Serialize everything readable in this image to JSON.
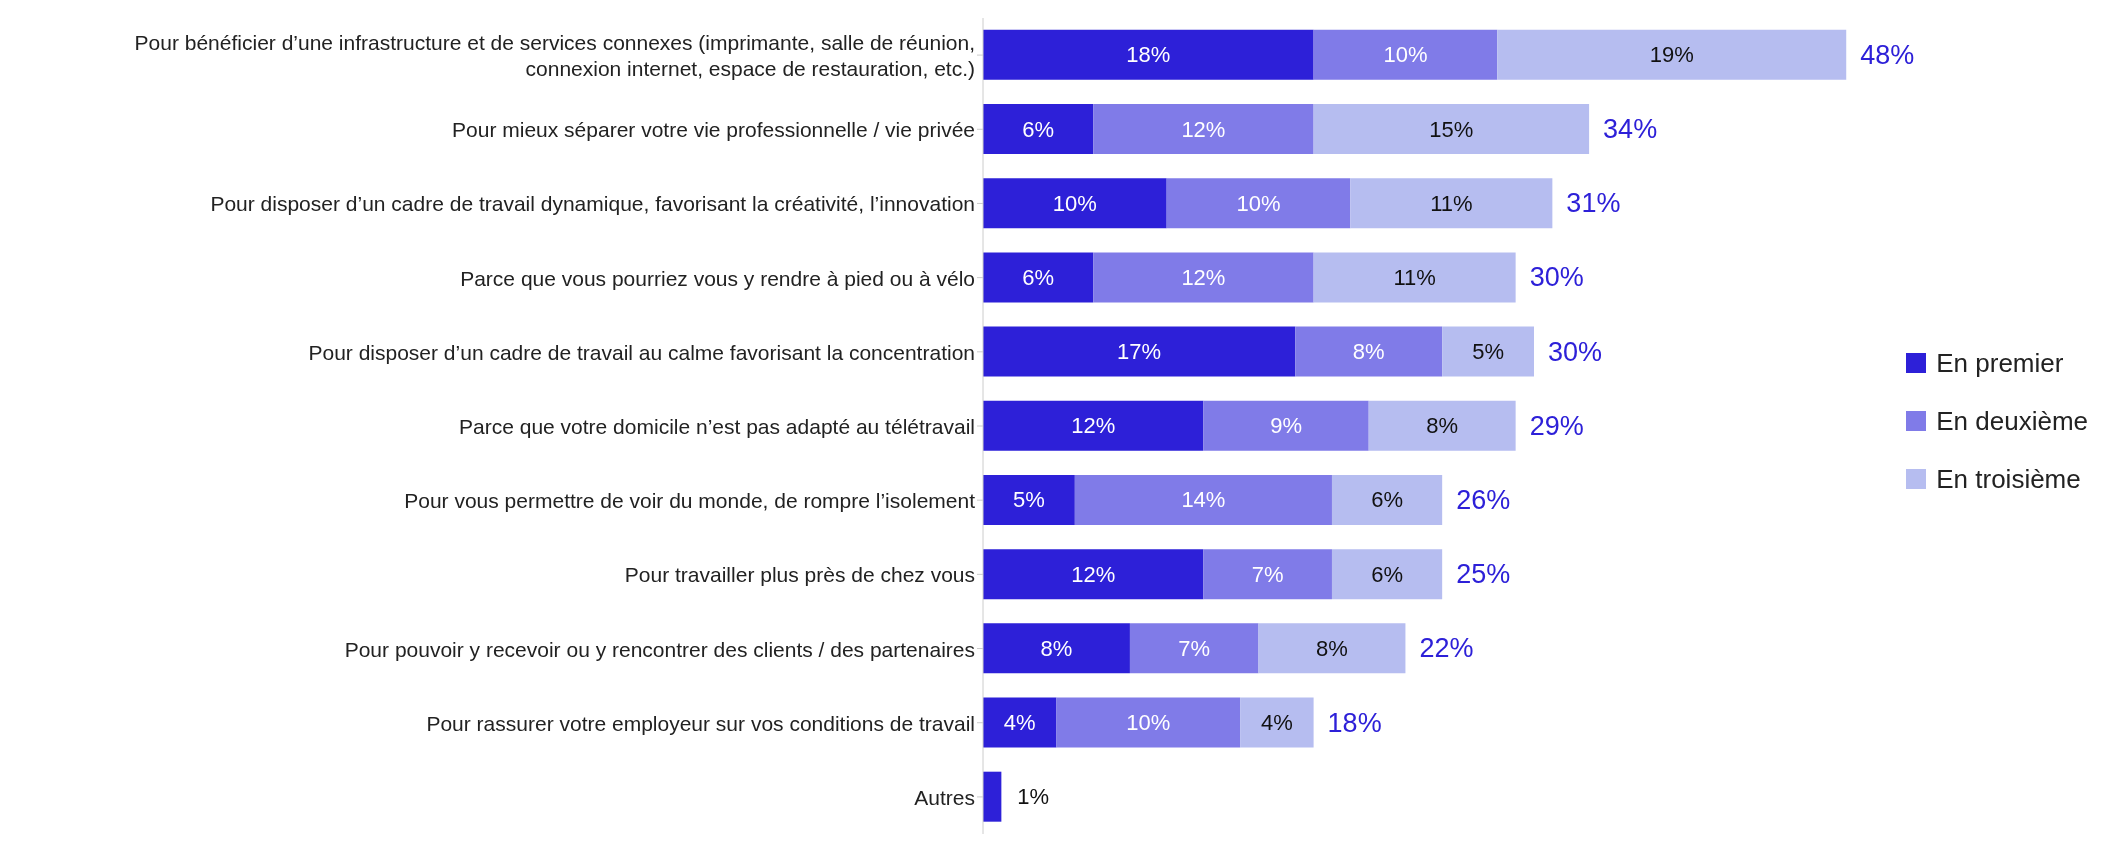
{
  "chart_data": {
    "type": "bar",
    "orientation": "horizontal",
    "stacked": true,
    "legend": "right",
    "categories": [
      "Pour bénéficier d’une infrastructure et de services connexes (imprimante, salle de réunion, connexion internet, espace de restauration, etc.)",
      "Pour mieux séparer votre vie professionnelle / vie privée",
      "Pour disposer d’un cadre de travail dynamique, favorisant la créativité, l’innovation",
      "Parce que vous pourriez vous y rendre à pied ou à vélo",
      "Pour disposer d’un cadre de travail au calme favorisant la concentration",
      "Parce que votre domicile n’est pas adapté au télétravail",
      "Pour vous permettre de voir du monde, de rompre l’isolement",
      "Pour travailler plus près de chez vous",
      "Pour pouvoir y recevoir ou y rencontrer des clients / des partenaires",
      "Pour rassurer votre employeur sur vos conditions de travail",
      "Autres"
    ],
    "series": [
      {
        "name": "En premier",
        "color": "#2d20d8",
        "values": [
          18,
          6,
          10,
          6,
          17,
          12,
          5,
          12,
          8,
          4,
          1
        ],
        "value_labels": [
          "18%",
          "6%",
          "10%",
          "6%",
          "17%",
          "12%",
          "5%",
          "12%",
          "8%",
          "4%",
          "1%"
        ]
      },
      {
        "name": "En deuxième",
        "color": "#807be8",
        "values": [
          10,
          12,
          10,
          12,
          8,
          9,
          14,
          7,
          7,
          10,
          null
        ],
        "value_labels": [
          "10%",
          "12%",
          "10%",
          "12%",
          "8%",
          "9%",
          "14%",
          "7%",
          "7%",
          "10%",
          null
        ]
      },
      {
        "name": "En troisième",
        "color": "#b6bdf0",
        "values": [
          19,
          15,
          11,
          11,
          5,
          8,
          6,
          6,
          8,
          4,
          null
        ],
        "value_labels": [
          "19%",
          "15%",
          "11%",
          "11%",
          "5%",
          "8%",
          "6%",
          "6%",
          "8%",
          "4%",
          null
        ]
      }
    ],
    "totals": [
      "48%",
      "34%",
      "31%",
      "30%",
      "30%",
      "29%",
      "26%",
      "25%",
      "22%",
      "18%",
      null
    ]
  }
}
